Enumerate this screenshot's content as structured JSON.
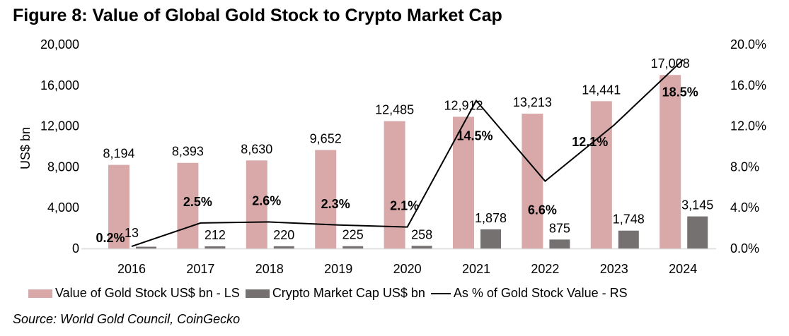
{
  "title": "Figure 8: Value of Global Gold Stock to Crypto Market Cap",
  "source": "Source: World Gold Council, CoinGecko",
  "colors": {
    "gold": "#d9a9a9",
    "crypto": "#767171",
    "line": "#000000",
    "axis": "#d9d9d9"
  },
  "legend": [
    {
      "label": "Value of Gold Stock US$ bn - LS",
      "type": "bar",
      "color": "#d9a9a9"
    },
    {
      "label": "Crypto Market Cap US$ bn",
      "type": "bar",
      "color": "#767171"
    },
    {
      "label": "As % of Gold Stock Value - RS",
      "type": "line",
      "color": "#000000"
    }
  ],
  "chart_data": {
    "type": "bar",
    "title": "Figure 8: Value of Global Gold Stock to Crypto Market Cap",
    "categories": [
      "2016",
      "2017",
      "2018",
      "2019",
      "2020",
      "2021",
      "2022",
      "2023",
      "2024"
    ],
    "series": [
      {
        "name": "Value of Gold Stock US$ bn - LS",
        "type": "bar",
        "axis": "left",
        "values": [
          8194,
          8393,
          8630,
          9652,
          12485,
          12912,
          13213,
          14441,
          17008
        ],
        "labels": [
          "8,194",
          "8,393",
          "8,630",
          "9,652",
          "12,485",
          "12,912",
          "13,213",
          "14,441",
          "17,008"
        ]
      },
      {
        "name": "Crypto Market Cap US$ bn",
        "type": "bar",
        "axis": "left",
        "values": [
          13,
          212,
          220,
          225,
          258,
          1878,
          875,
          1748,
          3145
        ],
        "labels": [
          "13",
          "212",
          "220",
          "225",
          "258",
          "1,878",
          "875",
          "1,748",
          "3,145"
        ]
      },
      {
        "name": "As % of Gold Stock Value - RS",
        "type": "line",
        "axis": "right",
        "values": [
          0.2,
          2.5,
          2.6,
          2.3,
          2.1,
          14.5,
          6.6,
          12.1,
          18.5
        ],
        "labels": [
          "0.2%",
          "2.5%",
          "2.6%",
          "2.3%",
          "2.1%",
          "14.5%",
          "6.6%",
          "12.1%",
          "18.5%"
        ]
      }
    ],
    "xlabel": "",
    "ylabel": "US$ bn",
    "ylim": [
      0,
      20000
    ],
    "y_ticks": [
      "0",
      "4,000",
      "8,000",
      "12,000",
      "16,000",
      "20,000"
    ],
    "y2lim": [
      0,
      20
    ],
    "y2_ticks": [
      "0.0%",
      "4.0%",
      "8.0%",
      "12.0%",
      "16.0%",
      "20.0%"
    ],
    "grid": false,
    "legend_position": "bottom"
  }
}
